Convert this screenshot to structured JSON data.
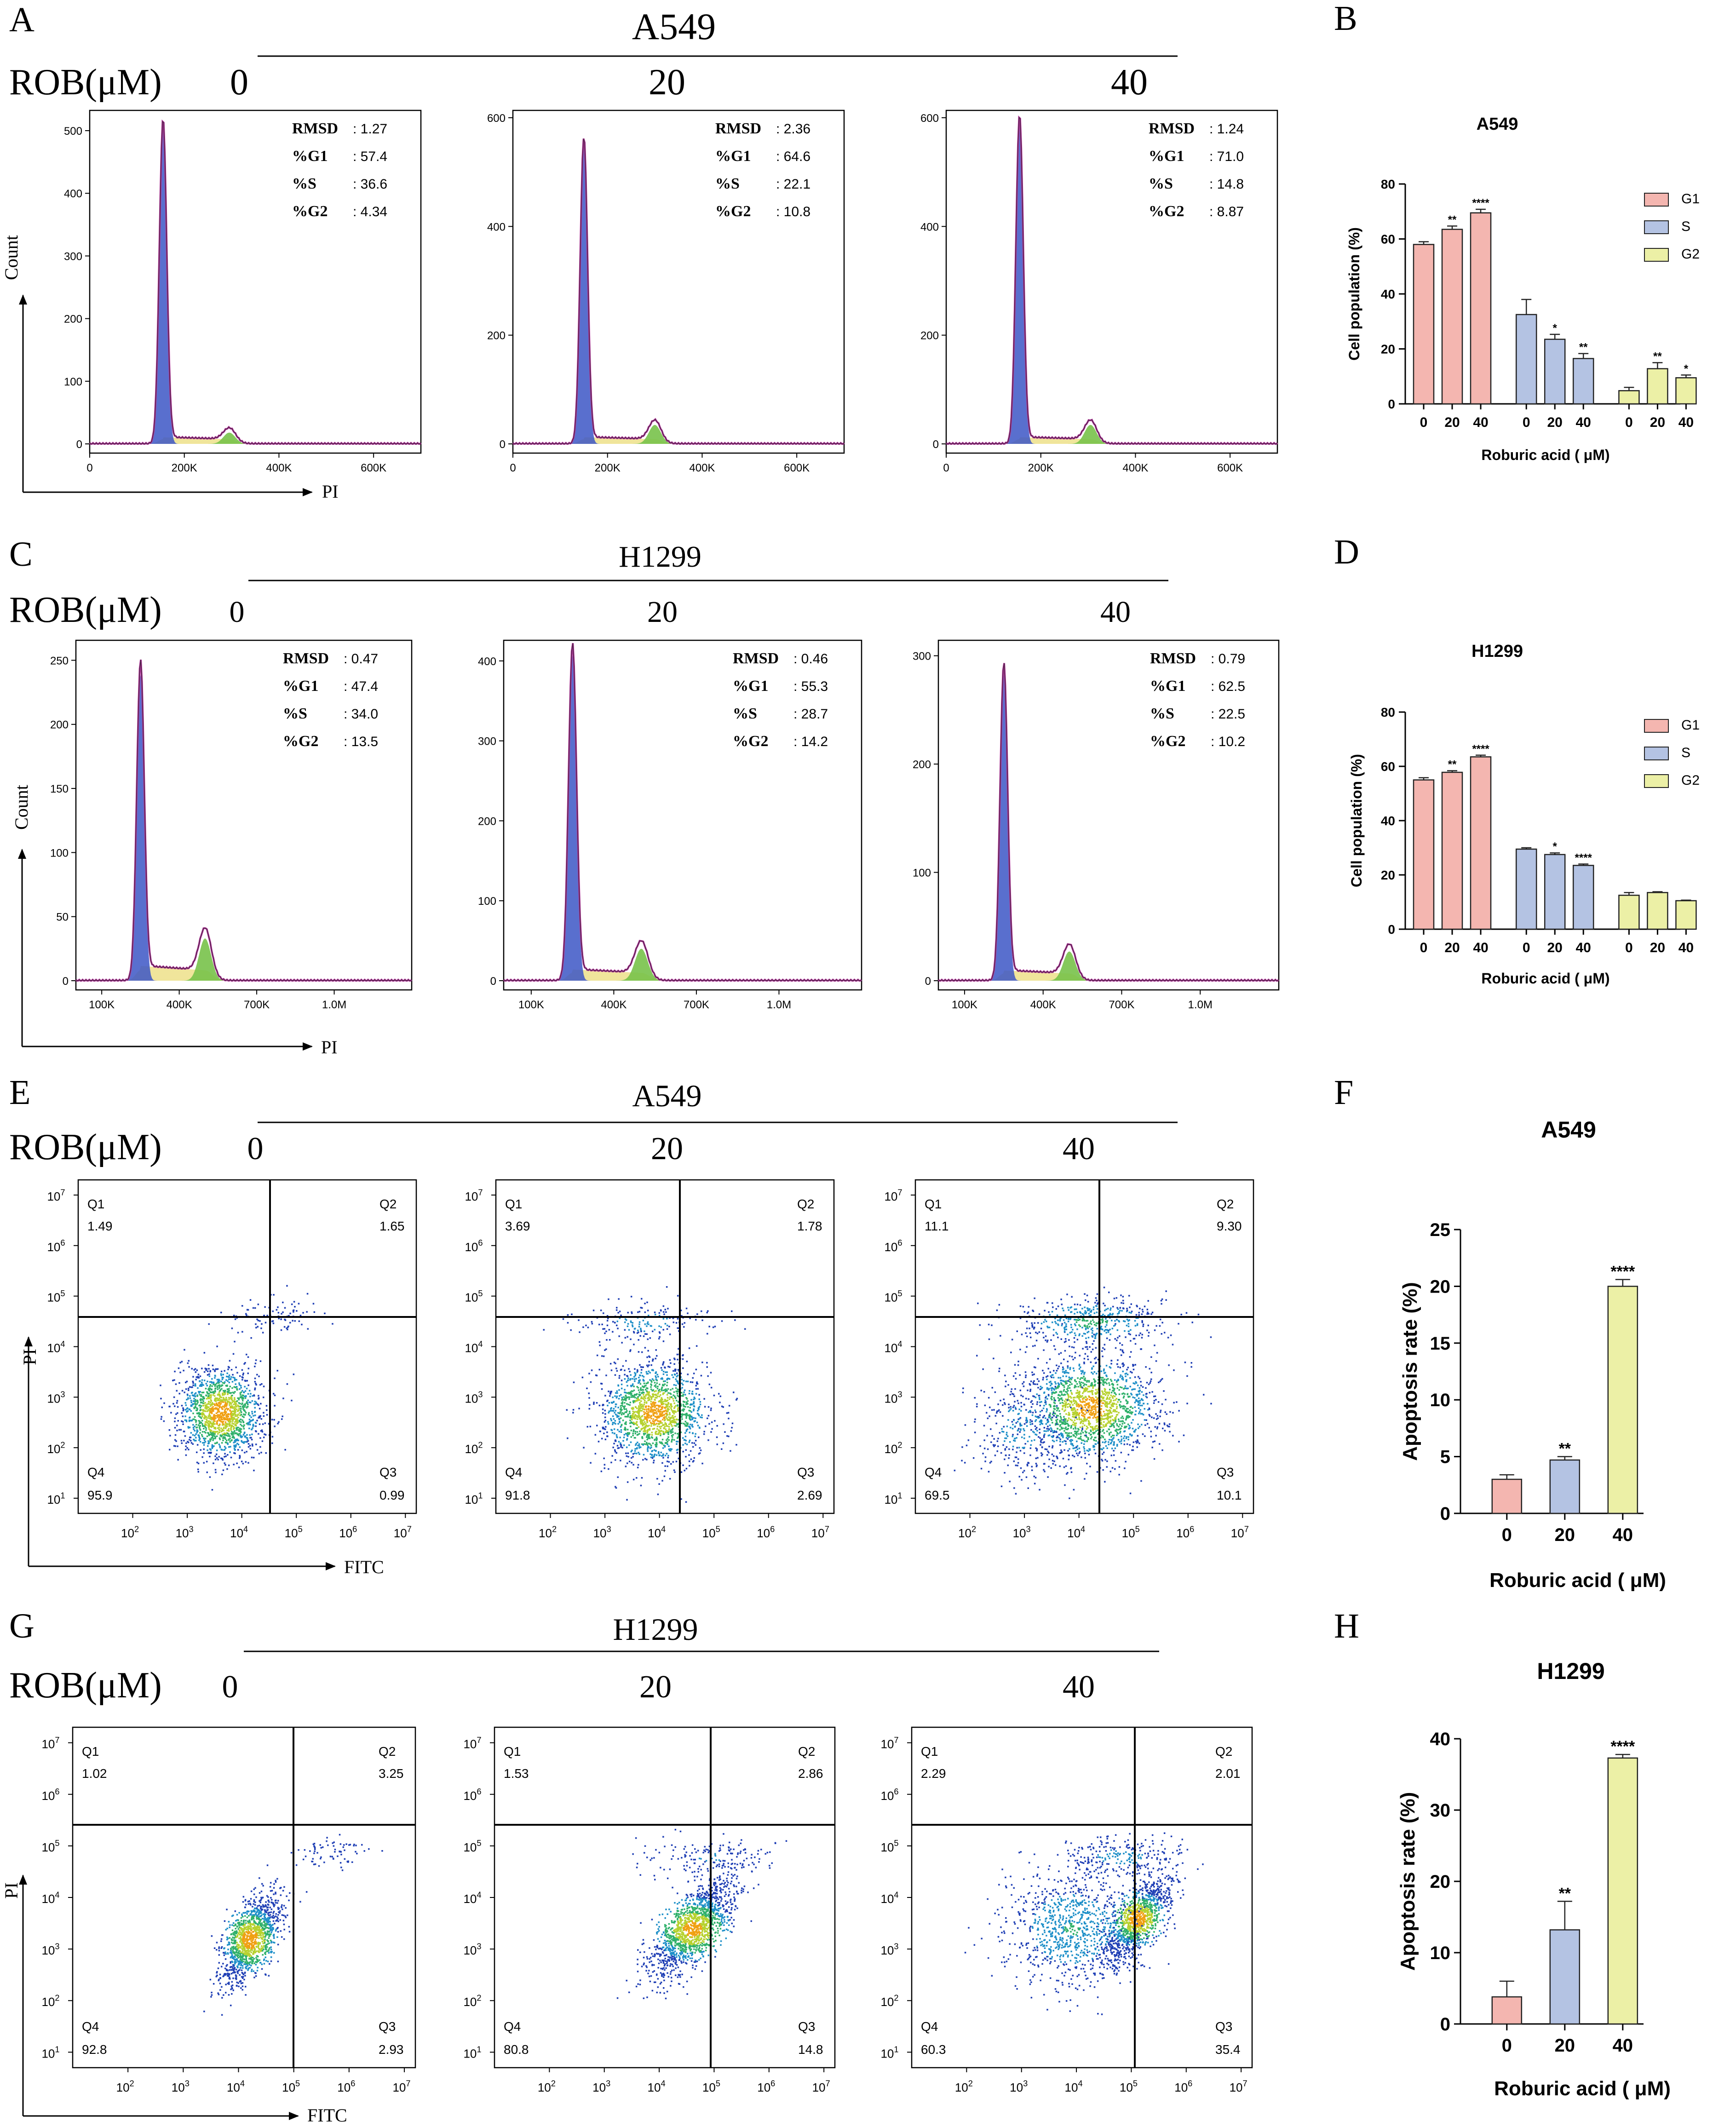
{
  "colors": {
    "g1": "#f4b6b0",
    "s": "#b4c3e3",
    "g2": "#ecf0a6",
    "hist_line": "#b0389a",
    "hist_g1": "#3c56c6",
    "hist_g2": "#78c24a",
    "hist_s": "#ede08a"
  },
  "panels": {
    "A": {
      "letter": "A",
      "line": "A549",
      "rob_label": "ROB(μM)",
      "doses": [
        "0",
        "20",
        "40"
      ]
    },
    "B": {
      "letter": "B"
    },
    "C": {
      "letter": "C",
      "line": "H1299",
      "rob_label": "ROB(μM)",
      "doses": [
        "0",
        "20",
        "40"
      ]
    },
    "D": {
      "letter": "D"
    },
    "E": {
      "letter": "E",
      "line": "A549",
      "rob_label": "ROB(μM)",
      "doses": [
        "0",
        "20",
        "40"
      ]
    },
    "F": {
      "letter": "F"
    },
    "G": {
      "letter": "G",
      "line": "H1299",
      "rob_label": "ROB(μM)",
      "doses": [
        "0",
        "20",
        "40"
      ]
    },
    "H": {
      "letter": "H"
    }
  },
  "chart_data": [
    {
      "panel": "A",
      "type": "histogram",
      "xlabel": "PI",
      "ylabel": "Count",
      "plots": [
        {
          "dose": "0",
          "yticks": [
            "0",
            "100",
            "200",
            "300",
            "400",
            "500"
          ],
          "ymax": 525,
          "xticks": [
            "0",
            "200K",
            "400K",
            "600K"
          ],
          "xmax": 700000,
          "g1_peak_x": 155000,
          "g1_peak_y": 510,
          "g2_peak_x": 295000,
          "g2_peak_y": 18,
          "stats": [
            [
              "RMSD",
              "1.27"
            ],
            [
              "%G1",
              "57.4"
            ],
            [
              "%S",
              "36.6"
            ],
            [
              "%G2",
              "4.34"
            ]
          ]
        },
        {
          "dose": "20",
          "yticks": [
            "0",
            "200",
            "400",
            "600"
          ],
          "ymax": 605,
          "xticks": [
            "0",
            "200K",
            "400K",
            "600K"
          ],
          "xmax": 700000,
          "g1_peak_x": 150000,
          "g1_peak_y": 555,
          "g2_peak_x": 300000,
          "g2_peak_y": 35,
          "stats": [
            [
              "RMSD",
              "2.36"
            ],
            [
              "%G1",
              "64.6"
            ],
            [
              "%S",
              "22.1"
            ],
            [
              "%G2",
              "10.8"
            ]
          ]
        },
        {
          "dose": "40",
          "yticks": [
            "0",
            "200",
            "400",
            "600"
          ],
          "ymax": 605,
          "xticks": [
            "0",
            "200K",
            "400K",
            "600K"
          ],
          "xmax": 700000,
          "g1_peak_x": 155000,
          "g1_peak_y": 595,
          "g2_peak_x": 305000,
          "g2_peak_y": 35,
          "stats": [
            [
              "RMSD",
              "1.24"
            ],
            [
              "%G1",
              "71.0"
            ],
            [
              "%S",
              "14.8"
            ],
            [
              "%G2",
              "8.87"
            ]
          ]
        }
      ]
    },
    {
      "panel": "B",
      "type": "bar",
      "title": "A549",
      "ylabel": "Cell population (%)",
      "xlabel": "Roburic acid ( μM)",
      "ylim": [
        0,
        80
      ],
      "yticks": [
        "0",
        "20",
        "40",
        "60",
        "80"
      ],
      "categories": [
        "0",
        "20",
        "40"
      ],
      "series": [
        {
          "name": "G1",
          "values": [
            58,
            63.5,
            69.5
          ],
          "errors": [
            1,
            1.2,
            1.3
          ],
          "sig": [
            "",
            "**",
            "****"
          ]
        },
        {
          "name": "S",
          "values": [
            32.5,
            23.5,
            16.5
          ],
          "errors": [
            5.5,
            1.8,
            1.8
          ],
          "sig": [
            "",
            "*",
            "**"
          ]
        },
        {
          "name": "G2",
          "values": [
            4.8,
            12.8,
            9.5
          ],
          "errors": [
            1.2,
            2.2,
            1
          ],
          "sig": [
            "",
            "**",
            "*"
          ]
        }
      ]
    },
    {
      "panel": "C",
      "type": "histogram",
      "xlabel": "PI",
      "ylabel": "Count",
      "plots": [
        {
          "dose": "0",
          "yticks": [
            "0",
            "50",
            "100",
            "150",
            "200",
            "250"
          ],
          "ymax": 262,
          "xticks": [
            "100K",
            "400K",
            "700K",
            "1.0M"
          ],
          "xmin": 0,
          "xmax": 1300000,
          "g1_peak_x": 250000,
          "g1_peak_y": 240,
          "g2_peak_x": 500000,
          "g2_peak_y": 33,
          "stats": [
            [
              "RMSD",
              "0.47"
            ],
            [
              "%G1",
              "47.4"
            ],
            [
              "%S",
              "34.0"
            ],
            [
              "%G2",
              "13.5"
            ]
          ]
        },
        {
          "dose": "20",
          "yticks": [
            "0",
            "100",
            "200",
            "300",
            "400"
          ],
          "ymax": 420,
          "xticks": [
            "100K",
            "400K",
            "700K",
            "1.0M"
          ],
          "xmin": 0,
          "xmax": 1300000,
          "g1_peak_x": 250000,
          "g1_peak_y": 410,
          "g2_peak_x": 500000,
          "g2_peak_y": 40,
          "stats": [
            [
              "RMSD",
              "0.46"
            ],
            [
              "%G1",
              "55.3"
            ],
            [
              "%S",
              "28.7"
            ],
            [
              "%G2",
              "14.2"
            ]
          ]
        },
        {
          "dose": "40",
          "yticks": [
            "0",
            "100",
            "200",
            "300"
          ],
          "ymax": 310,
          "xticks": [
            "100K",
            "400K",
            "700K",
            "1.0M"
          ],
          "xmin": 0,
          "xmax": 1300000,
          "g1_peak_x": 250000,
          "g1_peak_y": 285,
          "g2_peak_x": 500000,
          "g2_peak_y": 27,
          "stats": [
            [
              "RMSD",
              "0.79"
            ],
            [
              "%G1",
              "62.5"
            ],
            [
              "%S",
              "22.5"
            ],
            [
              "%G2",
              "10.2"
            ]
          ]
        }
      ]
    },
    {
      "panel": "D",
      "type": "bar",
      "title": "H1299",
      "ylabel": "Cell population (%)",
      "xlabel": "Roburic acid ( μM)",
      "ylim": [
        0,
        80
      ],
      "yticks": [
        "0",
        "20",
        "40",
        "60",
        "80"
      ],
      "categories": [
        "0",
        "20",
        "40"
      ],
      "series": [
        {
          "name": "G1",
          "values": [
            55,
            57.8,
            63.5
          ],
          "errors": [
            0.8,
            0.6,
            0.6
          ],
          "sig": [
            "",
            "**",
            "****"
          ]
        },
        {
          "name": "S",
          "values": [
            29.5,
            27.5,
            23.5
          ],
          "errors": [
            0.5,
            0.6,
            0.5
          ],
          "sig": [
            "",
            "*",
            "****"
          ]
        },
        {
          "name": "G2",
          "values": [
            12.5,
            13.5,
            10.5
          ],
          "errors": [
            1,
            0.3,
            0.2
          ],
          "sig": [
            "",
            "",
            ""
          ]
        }
      ]
    },
    {
      "panel": "E",
      "type": "scatter",
      "xlabel": "FITC",
      "ylabel": "PI",
      "plots": [
        {
          "dose": "0",
          "quadrants": {
            "Q1": "1.49",
            "Q2": "1.65",
            "Q3": "0.99",
            "Q4": "95.9"
          }
        },
        {
          "dose": "20",
          "quadrants": {
            "Q1": "3.69",
            "Q2": "1.78",
            "Q3": "2.69",
            "Q4": "91.8"
          }
        },
        {
          "dose": "40",
          "quadrants": {
            "Q1": "11.1",
            "Q2": "9.30",
            "Q3": "10.1",
            "Q4": "69.5"
          }
        }
      ]
    },
    {
      "panel": "F",
      "type": "bar",
      "title": "A549",
      "ylabel": "Apoptosis rate (%)",
      "xlabel": "Roburic acid ( μM)",
      "ylim": [
        0,
        25
      ],
      "yticks": [
        "0",
        "5",
        "10",
        "15",
        "20",
        "25"
      ],
      "categories": [
        "0",
        "20",
        "40"
      ],
      "values": [
        3,
        4.7,
        20
      ],
      "errors": [
        0.4,
        0.3,
        0.6
      ],
      "sig": [
        "",
        "**",
        "****"
      ]
    },
    {
      "panel": "G",
      "type": "scatter",
      "xlabel": "FITC",
      "ylabel": "PI",
      "plots": [
        {
          "dose": "0",
          "quadrants": {
            "Q1": "1.02",
            "Q2": "3.25",
            "Q3": "2.93",
            "Q4": "92.8"
          }
        },
        {
          "dose": "20",
          "quadrants": {
            "Q1": "1.53",
            "Q2": "2.86",
            "Q3": "14.8",
            "Q4": "80.8"
          }
        },
        {
          "dose": "40",
          "quadrants": {
            "Q1": "2.29",
            "Q2": "2.01",
            "Q3": "35.4",
            "Q4": "60.3"
          }
        }
      ]
    },
    {
      "panel": "H",
      "type": "bar",
      "title": "H1299",
      "ylabel": "Apoptosis rate (%)",
      "xlabel": "Roburic acid ( μM)",
      "ylim": [
        0,
        40
      ],
      "yticks": [
        "0",
        "10",
        "20",
        "30",
        "40"
      ],
      "categories": [
        "0",
        "20",
        "40"
      ],
      "values": [
        3.8,
        13.2,
        37.3
      ],
      "errors": [
        2.2,
        4,
        0.5
      ],
      "sig": [
        "",
        "**",
        "****"
      ]
    }
  ]
}
